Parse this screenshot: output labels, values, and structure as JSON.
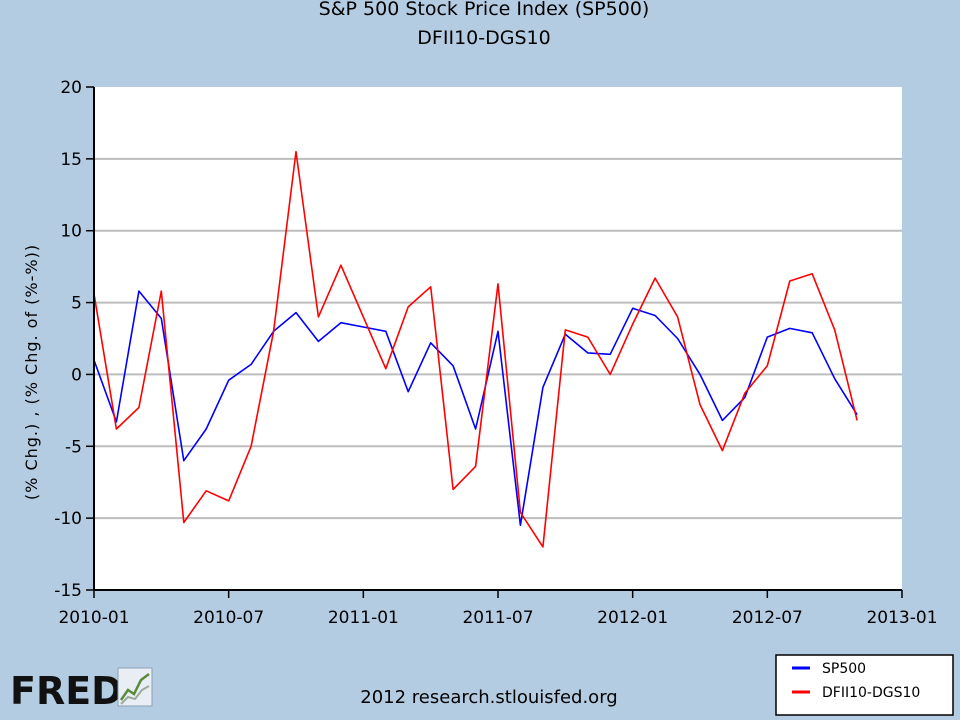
{
  "chart_data": {
    "type": "line",
    "title": "S&P 500 Stock Price Index (SP500)",
    "subtitle": "DFII10-DGS10",
    "ylabel": "(% Chg.) , (% Chg. of (%-%))",
    "xlabel": "",
    "ylim": [
      -15,
      20
    ],
    "yticks": [
      -15,
      -10,
      -5,
      0,
      5,
      10,
      15,
      20
    ],
    "xlim_months": [
      0,
      36
    ],
    "xticks": [
      {
        "month": 0,
        "label": "2010-01"
      },
      {
        "month": 6,
        "label": "2010-07"
      },
      {
        "month": 12,
        "label": "2011-01"
      },
      {
        "month": 18,
        "label": "2011-07"
      },
      {
        "month": 24,
        "label": "2012-01"
      },
      {
        "month": 30,
        "label": "2012-07"
      },
      {
        "month": 36,
        "label": "2013-01"
      }
    ],
    "grid": true,
    "legend_position": "bottom-right",
    "x": [
      "2010-01",
      "2010-02",
      "2010-03",
      "2010-04",
      "2010-05",
      "2010-06",
      "2010-07",
      "2010-08",
      "2010-09",
      "2010-10",
      "2010-11",
      "2010-12",
      "2011-01",
      "2011-02",
      "2011-03",
      "2011-04",
      "2011-05",
      "2011-06",
      "2011-07",
      "2011-08",
      "2011-09",
      "2011-10",
      "2011-11",
      "2011-12",
      "2012-01",
      "2012-02",
      "2012-03",
      "2012-04",
      "2012-05",
      "2012-06",
      "2012-07",
      "2012-08",
      "2012-09",
      "2012-10",
      "2012-11"
    ],
    "series": [
      {
        "name": "SP500",
        "color": "#0000ff",
        "values": [
          1.0,
          -3.3,
          5.8,
          3.9,
          -6.0,
          -3.8,
          -0.4,
          0.7,
          3.0,
          4.3,
          2.3,
          3.6,
          3.3,
          3.0,
          -1.2,
          2.2,
          0.6,
          -3.8,
          3.0,
          -10.5,
          -0.9,
          2.8,
          1.5,
          1.4,
          4.6,
          4.1,
          2.5,
          0.0,
          -3.2,
          -1.6,
          2.6,
          3.2,
          2.9,
          -0.3,
          -2.8
        ]
      },
      {
        "name": "DFII10-DGS10",
        "color": "#ff0000",
        "values": [
          5.6,
          -3.8,
          -2.3,
          5.8,
          -10.3,
          -8.1,
          -8.8,
          -5.0,
          3.0,
          15.5,
          4.0,
          7.6,
          4.0,
          0.4,
          4.7,
          6.1,
          -8.0,
          -6.4,
          6.3,
          -9.6,
          -12.0,
          3.1,
          2.6,
          0.0,
          3.5,
          6.7,
          4.0,
          -2.1,
          -5.3,
          -1.3,
          0.6,
          6.5,
          7.0,
          3.1,
          -3.2
        ]
      }
    ]
  },
  "logo_text": "FRED",
  "credit": "2012 research.stlouisfed.org"
}
